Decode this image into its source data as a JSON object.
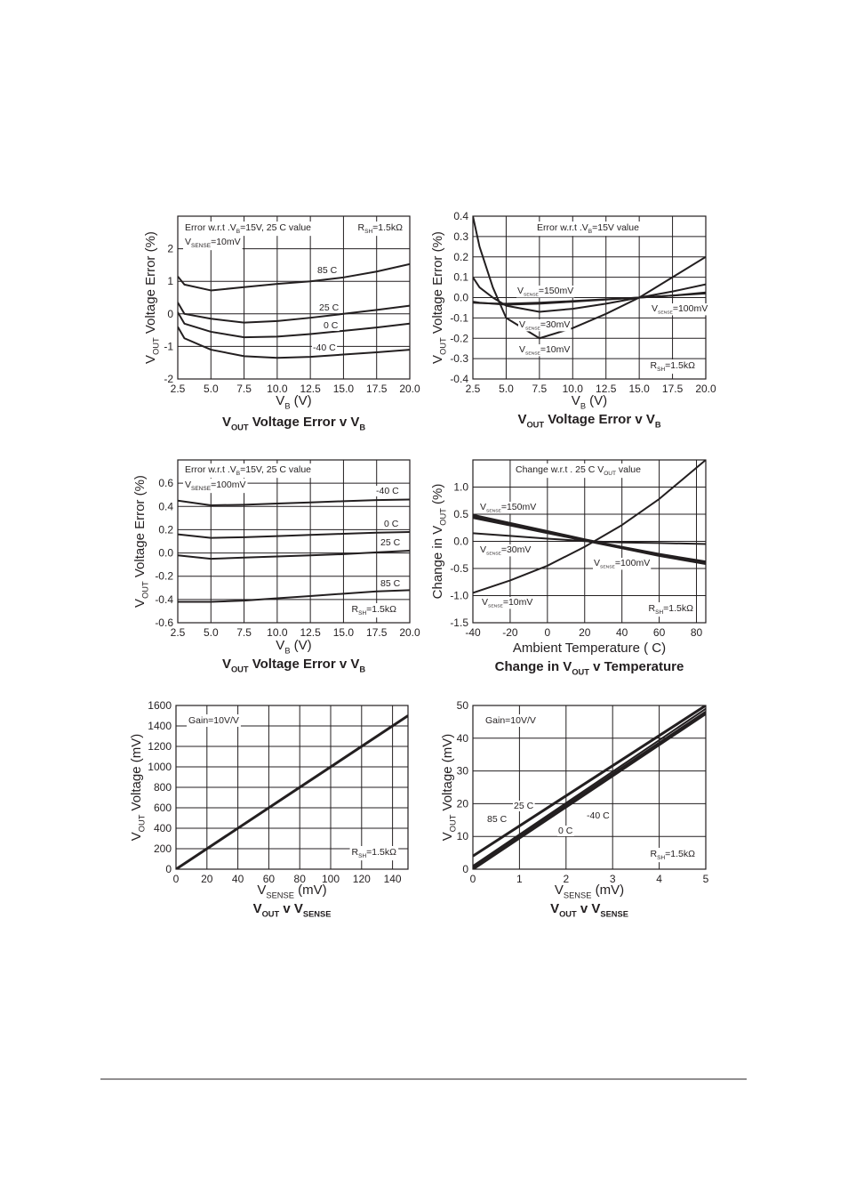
{
  "chart_data": [
    {
      "type": "line",
      "title": [
        "V",
        {
          "sub": "OUT"
        },
        " Voltage Error v V",
        {
          "sub": "B"
        }
      ],
      "xlabel": [
        "V",
        {
          "sub": "B"
        },
        " (V)"
      ],
      "ylabel": [
        "V",
        {
          "sub": "OUT"
        },
        " Voltage Error (%)"
      ],
      "annotations": [
        [
          "Error w.r.t .V",
          {
            "sub": "B"
          },
          "=15V, 25 C value"
        ],
        [
          "R",
          {
            "sub": "SH"
          },
          "=1.5kΩ"
        ],
        [
          "V",
          {
            "sub": "SENSE"
          },
          "=10mV"
        ]
      ],
      "x": [
        2.5,
        3,
        5,
        7.5,
        10,
        12.5,
        15,
        17.5,
        20
      ],
      "xlim": [
        2.5,
        20
      ],
      "xticks": [
        2.5,
        {
          "value": 5,
          "label": "5.0"
        },
        7.5,
        {
          "value": 10,
          "label": "10.0"
        },
        12.5,
        {
          "value": 15,
          "label": "15.0"
        },
        17.5,
        {
          "value": 20,
          "label": "20.0"
        }
      ],
      "ylim": [
        -2,
        3
      ],
      "yticks": [
        -2,
        -1,
        0,
        1,
        2
      ],
      "grid": true,
      "series": [
        {
          "name": "85 C",
          "color": "#231f20",
          "values": [
            1.15,
            0.9,
            0.72,
            0.82,
            0.92,
            1.0,
            1.12,
            1.3,
            1.53
          ]
        },
        {
          "name": "25 C",
          "color": "#231f20",
          "values": [
            0.35,
            0.0,
            -0.15,
            -0.27,
            -0.22,
            -0.12,
            0.0,
            0.12,
            0.25
          ]
        },
        {
          "name": "0 C",
          "color": "#231f20",
          "values": [
            0.05,
            -0.3,
            -0.55,
            -0.72,
            -0.7,
            -0.62,
            -0.52,
            -0.42,
            -0.3
          ]
        },
        {
          "name": "-40 C",
          "color": "#231f20",
          "values": [
            -0.4,
            -0.75,
            -1.1,
            -1.3,
            -1.35,
            -1.32,
            -1.25,
            -1.18,
            -1.1
          ]
        }
      ]
    },
    {
      "type": "line",
      "title": [
        "V",
        {
          "sub": "OUT"
        },
        " Voltage Error v V",
        {
          "sub": "B"
        }
      ],
      "xlabel": [
        "V",
        {
          "sub": "B"
        },
        " (V)"
      ],
      "ylabel": [
        "V",
        {
          "sub": "OUT"
        },
        " Voltage Error (%)"
      ],
      "annotations": [
        [
          "Error w.r.t .V",
          {
            "sub": "B"
          },
          "=15V value"
        ],
        [
          "R",
          {
            "sub": "SH"
          },
          "=1.5kΩ"
        ]
      ],
      "x": [
        2.5,
        3,
        4,
        5,
        7.5,
        10,
        12.5,
        15,
        17.5,
        20
      ],
      "xlim": [
        2.5,
        20
      ],
      "xticks": [
        2.5,
        {
          "value": 5,
          "label": "5.0"
        },
        7.5,
        {
          "value": 10,
          "label": "10.0"
        },
        12.5,
        {
          "value": 15,
          "label": "15.0"
        },
        17.5,
        {
          "value": 20,
          "label": "20.0"
        }
      ],
      "ylim": [
        -0.4,
        0.4
      ],
      "yticks": [
        -0.4,
        -0.3,
        -0.2,
        -0.1,
        {
          "value": 0,
          "label": "0.0"
        },
        0.1,
        0.2,
        0.3,
        0.4
      ],
      "grid": true,
      "series": [
        {
          "name": [
            "V",
            {
              "sub": "SENSE"
            },
            "=150mV"
          ],
          "color": "#231f20",
          "values": [
            -0.025,
            -0.027,
            -0.029,
            -0.03,
            -0.025,
            -0.017,
            -0.008,
            0.0,
            0.01,
            0.025
          ]
        },
        {
          "name": [
            "V",
            {
              "sub": "SENSE"
            },
            "=100mV"
          ],
          "color": "#231f20",
          "values": [
            -0.02,
            -0.025,
            -0.03,
            -0.035,
            -0.03,
            -0.02,
            -0.01,
            0.0,
            0.01,
            0.02
          ]
        },
        {
          "name": [
            "V",
            {
              "sub": "SENSE"
            },
            "=30mV"
          ],
          "color": "#231f20",
          "values": [
            0.1,
            0.05,
            0.0,
            -0.04,
            -0.07,
            -0.055,
            -0.03,
            0.0,
            0.03,
            0.065
          ]
        },
        {
          "name": [
            "V",
            {
              "sub": "SENSE"
            },
            "=10mV"
          ],
          "color": "#231f20",
          "values": [
            0.4,
            0.25,
            0.05,
            -0.1,
            -0.2,
            -0.15,
            -0.08,
            0.0,
            0.1,
            0.2
          ]
        }
      ]
    },
    {
      "type": "line",
      "title": [
        "V",
        {
          "sub": "OUT"
        },
        " Voltage Error v V",
        {
          "sub": "B"
        }
      ],
      "xlabel": [
        "V",
        {
          "sub": "B"
        },
        " (V)"
      ],
      "ylabel": [
        "V",
        {
          "sub": "OUT"
        },
        " Voltage Error (%)"
      ],
      "annotations": [
        [
          "Error w.r.t .V",
          {
            "sub": "B"
          },
          "=15V, 25 C value"
        ],
        [
          "V",
          {
            "sub": "SENSE"
          },
          "=100mV"
        ],
        [
          "R",
          {
            "sub": "SH"
          },
          "=1.5kΩ"
        ]
      ],
      "x": [
        2.5,
        5,
        7.5,
        10,
        12.5,
        15,
        17.5,
        20
      ],
      "xlim": [
        2.5,
        20
      ],
      "xticks": [
        2.5,
        {
          "value": 5,
          "label": "5.0"
        },
        7.5,
        {
          "value": 10,
          "label": "10.0"
        },
        12.5,
        {
          "value": 15,
          "label": "15.0"
        },
        17.5,
        {
          "value": 20,
          "label": "20.0"
        }
      ],
      "ylim": [
        -0.6,
        0.8
      ],
      "yticks": [
        -0.6,
        -0.4,
        -0.2,
        {
          "value": 0,
          "label": "0.0"
        },
        0.2,
        0.4,
        0.6
      ],
      "grid": true,
      "series": [
        {
          "name": "-40 C",
          "color": "#231f20",
          "values": [
            0.45,
            0.41,
            0.415,
            0.425,
            0.435,
            0.445,
            0.455,
            0.46
          ]
        },
        {
          "name": "0 C",
          "color": "#231f20",
          "values": [
            0.16,
            0.13,
            0.135,
            0.145,
            0.155,
            0.165,
            0.175,
            0.18
          ]
        },
        {
          "name": "25 C",
          "color": "#231f20",
          "values": [
            -0.02,
            -0.05,
            -0.04,
            -0.03,
            -0.02,
            -0.01,
            0.005,
            0.02
          ]
        },
        {
          "name": "85 C",
          "color": "#231f20",
          "values": [
            -0.42,
            -0.42,
            -0.41,
            -0.39,
            -0.37,
            -0.35,
            -0.33,
            -0.32
          ]
        }
      ]
    },
    {
      "type": "line",
      "title": [
        "Change in V",
        {
          "sub": "OUT"
        },
        " v Temperature"
      ],
      "xlabel": "Ambient Temperature ( C)",
      "ylabel": [
        "Change in V",
        {
          "sub": "OUT"
        },
        " (%)"
      ],
      "annotations": [
        [
          "Change w.r.t . 25 C V",
          {
            "sub": "OUT"
          },
          " value"
        ],
        [
          "R",
          {
            "sub": "SH"
          },
          "=1.5kΩ"
        ]
      ],
      "x": [
        -40,
        -20,
        0,
        20,
        40,
        60,
        85
      ],
      "xlim": [
        -40,
        85
      ],
      "xticks": [
        -40,
        -20,
        0,
        20,
        40,
        60,
        80
      ],
      "ylim": [
        -1.5,
        1.5
      ],
      "yticks": [
        -1.5,
        {
          "value": -1,
          "label": "-1.0"
        },
        -0.5,
        {
          "value": 0,
          "label": "0.0"
        },
        0.5,
        {
          "value": 1,
          "label": "1.0"
        }
      ],
      "grid": true,
      "series": [
        {
          "name": [
            "V",
            {
              "sub": "SENSE"
            },
            "=150mV"
          ],
          "color": "#231f20",
          "values": [
            0.48,
            0.33,
            0.18,
            0.03,
            -0.11,
            -0.24,
            -0.38
          ]
        },
        {
          "name": [
            "V",
            {
              "sub": "SENSE"
            },
            "=30mV"
          ],
          "color": "#231f20",
          "values": [
            0.15,
            0.1,
            0.05,
            0.005,
            -0.02,
            -0.03,
            -0.05
          ]
        },
        {
          "name": [
            "V",
            {
              "sub": "SENSE"
            },
            "=100mV"
          ],
          "color": "#231f20",
          "values": [
            0.44,
            0.3,
            0.16,
            0.02,
            -0.12,
            -0.26,
            -0.41
          ]
        },
        {
          "name": [
            "V",
            {
              "sub": "SENSE"
            },
            "=10mV"
          ],
          "color": "#231f20",
          "values": [
            -0.95,
            -0.72,
            -0.45,
            -0.1,
            0.3,
            0.78,
            1.5
          ]
        }
      ]
    },
    {
      "type": "line",
      "title": [
        "V",
        {
          "sub": "OUT"
        },
        " v V",
        {
          "sub": "SENSE"
        }
      ],
      "xlabel": [
        "V",
        {
          "sub": "SENSE"
        },
        " (mV)"
      ],
      "ylabel": [
        "V",
        {
          "sub": "OUT"
        },
        " Voltage (mV)"
      ],
      "annotations": [
        [
          "Gain=10V/V"
        ],
        [
          "R",
          {
            "sub": "SH"
          },
          "=1.5kΩ"
        ]
      ],
      "x": [
        0,
        150
      ],
      "xlim": [
        0,
        150
      ],
      "xticks": [
        0,
        20,
        40,
        60,
        80,
        100,
        120,
        140
      ],
      "ylim": [
        0,
        1600
      ],
      "yticks": [
        0,
        200,
        400,
        600,
        800,
        1000,
        1200,
        1400,
        1600
      ],
      "grid": true,
      "series": [
        {
          "color": "#231f20",
          "values": [
            0,
            1500
          ]
        }
      ]
    },
    {
      "type": "line",
      "title": [
        "V",
        {
          "sub": "OUT"
        },
        " v V",
        {
          "sub": "SENSE"
        }
      ],
      "xlabel": [
        "V",
        {
          "sub": "SENSE"
        },
        " (mV)"
      ],
      "ylabel": [
        "V",
        {
          "sub": "OUT"
        },
        " Voltage (mV)"
      ],
      "annotations": [
        [
          "Gain=10V/V"
        ],
        [
          "R",
          {
            "sub": "SH"
          },
          "=1.5kΩ"
        ]
      ],
      "x": [
        0,
        5
      ],
      "xlim": [
        0,
        5
      ],
      "xticks": [
        0,
        1,
        2,
        3,
        4,
        5
      ],
      "ylim": [
        0,
        50
      ],
      "yticks": [
        0,
        10,
        20,
        30,
        40,
        50
      ],
      "grid": true,
      "series": [
        {
          "name": "25 C",
          "color": "#231f20",
          "values": [
            1,
            49
          ]
        },
        {
          "name": "85 C",
          "color": "#231f20",
          "values": [
            4,
            50
          ]
        },
        {
          "name": "0 C",
          "color": "#231f20",
          "values": [
            0.5,
            48
          ]
        },
        {
          "name": "-40 C",
          "color": "#231f20",
          "values": [
            0,
            47.5
          ]
        }
      ]
    }
  ]
}
